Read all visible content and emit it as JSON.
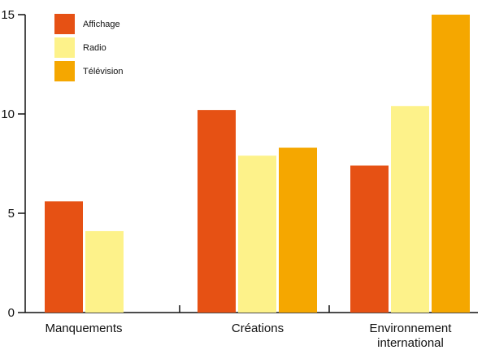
{
  "chart_data": {
    "type": "bar",
    "categories": [
      [
        "Manquements"
      ],
      [
        "Créations"
      ],
      [
        "Environnement",
        "international"
      ]
    ],
    "series": [
      {
        "name": "Affichage",
        "color": "#e65114",
        "values": [
          5.6,
          10.2,
          7.4
        ]
      },
      {
        "name": "Radio",
        "color": "#fdf28a",
        "values": [
          4.1,
          7.9,
          10.4
        ]
      },
      {
        "name": "Télévision",
        "color": "#f5a700",
        "values": [
          null,
          8.3,
          15.0
        ]
      }
    ],
    "yticks": [
      "0",
      "5",
      "10",
      "15"
    ],
    "ylim": [
      0,
      15
    ],
    "grid": false,
    "legend": "top-left"
  }
}
